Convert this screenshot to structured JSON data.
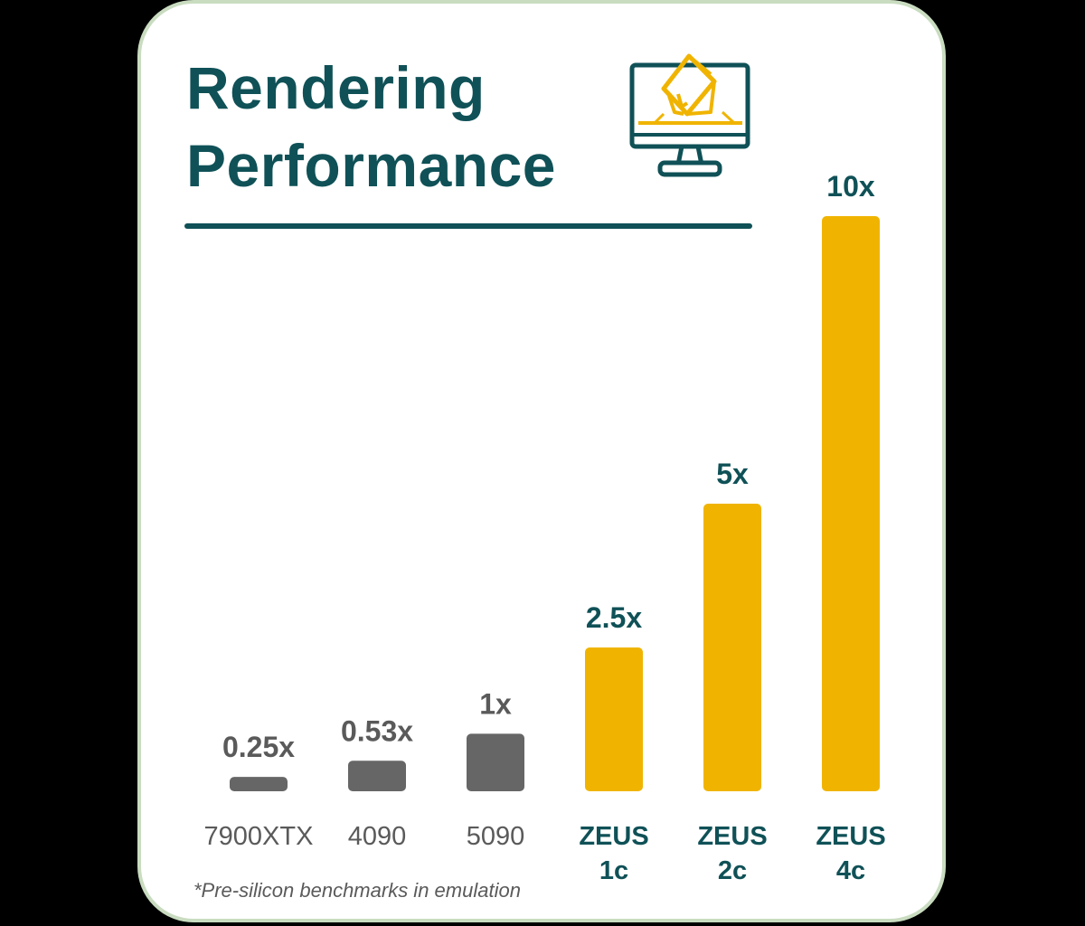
{
  "title_line1": "Rendering",
  "title_line2": "Performance",
  "footnote": "*Pre-silicon benchmarks in emulation",
  "icon": "monitor-with-3d-house-icon",
  "colors": {
    "title": "#0f5157",
    "card_border": "#c9dcc0",
    "baseline_bar": "#666666",
    "zeus_bar": "#f0b400",
    "baseline_label": "#5a5a5a",
    "zeus_label": "#0f5157"
  },
  "chart_data": {
    "type": "bar",
    "title": "Rendering Performance",
    "xlabel": "",
    "ylabel": "",
    "ylim": [
      0,
      10
    ],
    "grid": false,
    "categories": [
      "7900XTX",
      "4090",
      "5090",
      "ZEUS 1c",
      "ZEUS 2c",
      "ZEUS 4c"
    ],
    "category_lines": [
      [
        "7900XTX"
      ],
      [
        "4090"
      ],
      [
        "5090"
      ],
      [
        "ZEUS",
        "1c"
      ],
      [
        "ZEUS",
        "2c"
      ],
      [
        "ZEUS",
        "4c"
      ]
    ],
    "values": [
      0.25,
      0.53,
      1,
      2.5,
      5,
      10
    ],
    "value_labels": [
      "0.25x",
      "0.53x",
      "1x",
      "2.5x",
      "5x",
      "10x"
    ],
    "highlight": [
      false,
      false,
      false,
      true,
      true,
      true
    ]
  }
}
